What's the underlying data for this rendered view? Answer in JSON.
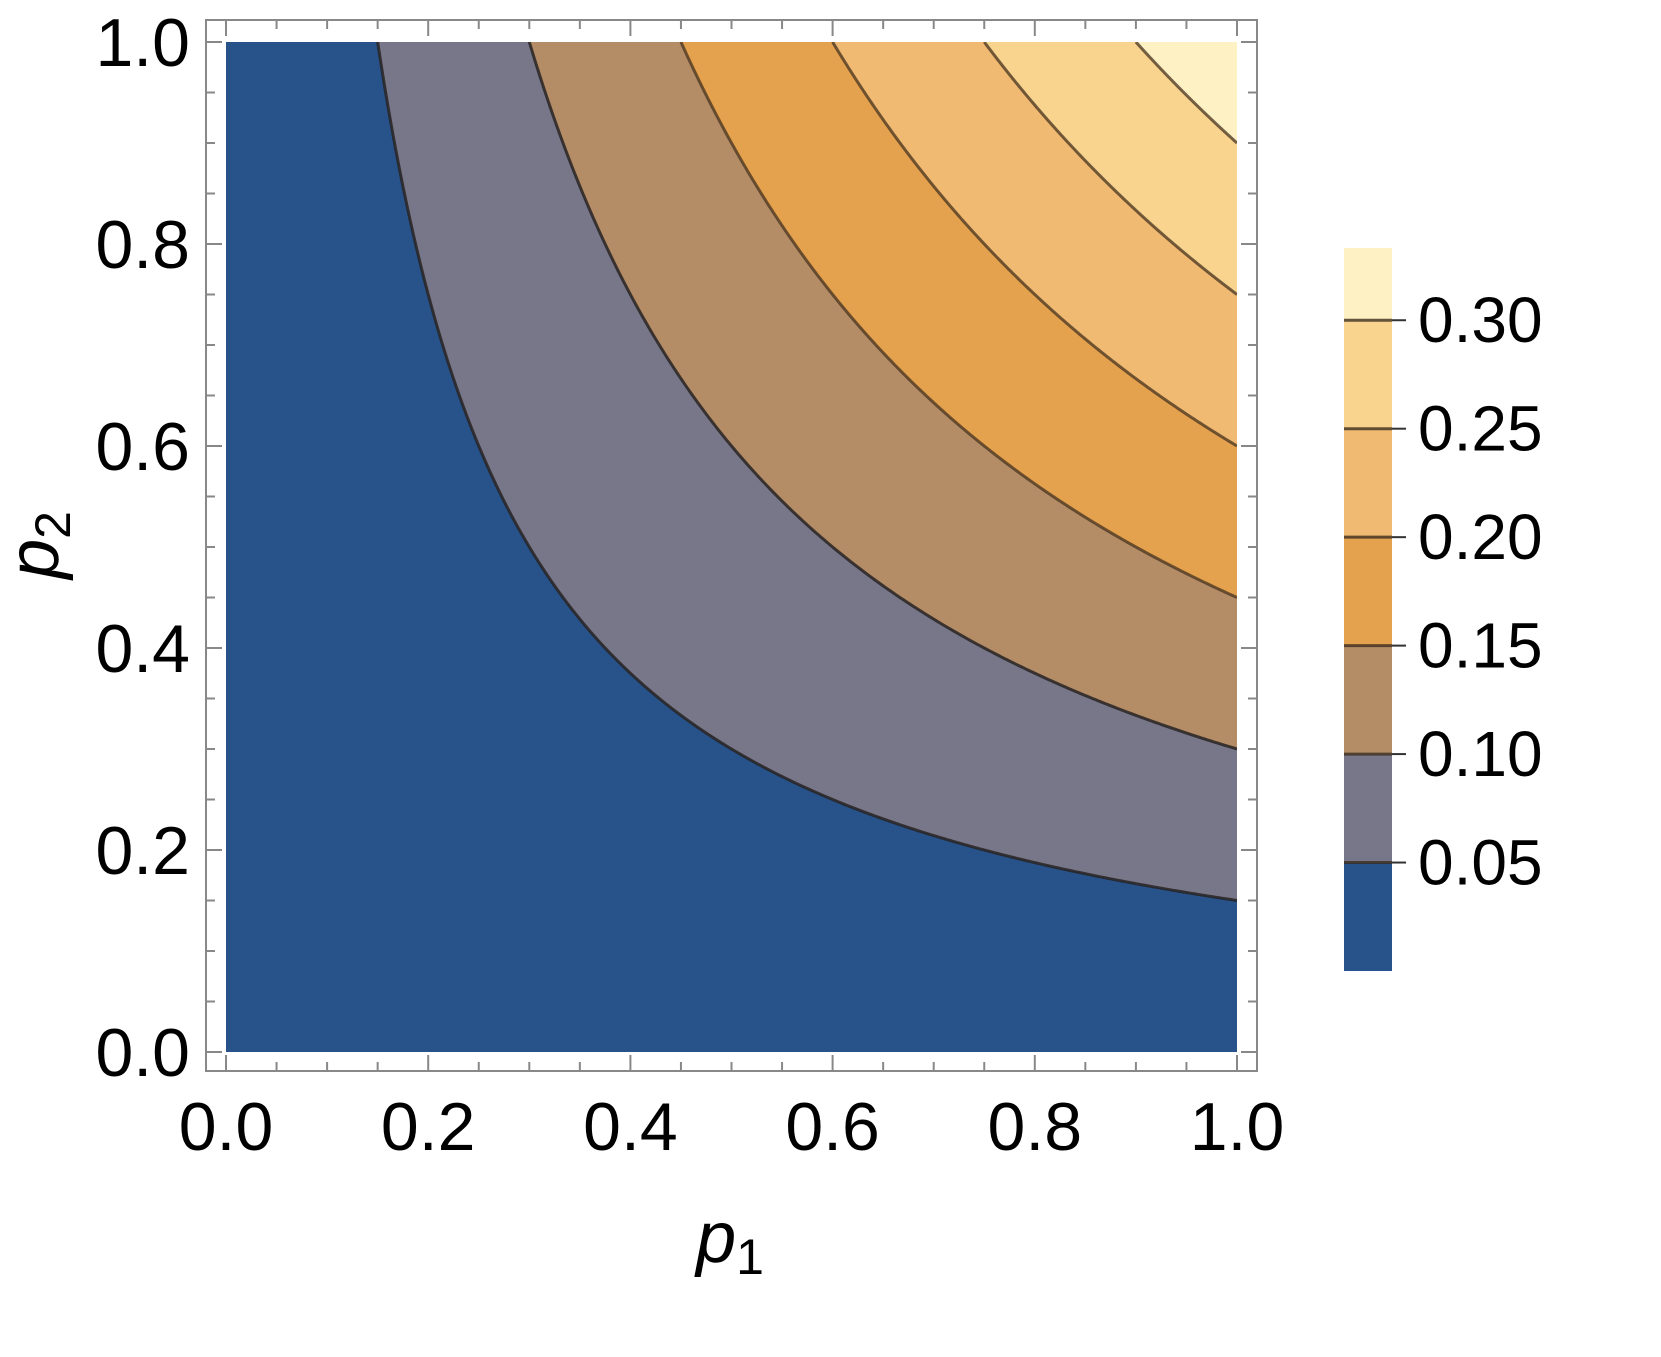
{
  "chart_data": {
    "type": "contour",
    "function": "z = p1 * p2 / 3",
    "xlabel": {
      "main": "p",
      "sub": "1"
    },
    "ylabel": {
      "main": "p",
      "sub": "2"
    },
    "xlim": [
      0,
      1
    ],
    "ylim": [
      0,
      1
    ],
    "x_ticks": [
      "0.0",
      "0.2",
      "0.4",
      "0.6",
      "0.8",
      "1.0"
    ],
    "y_ticks": [
      "0.0",
      "0.2",
      "0.4",
      "0.6",
      "0.8",
      "1.0"
    ],
    "contour_levels": [
      0.05,
      0.1,
      0.15,
      0.2,
      0.25,
      0.3
    ],
    "colorbar": {
      "min": 0,
      "max": 0.3333,
      "tick_labels": [
        "0.05",
        "0.10",
        "0.15",
        "0.20",
        "0.25",
        "0.30"
      ]
    },
    "band_colors": [
      "#27538A",
      "#787789",
      "#B48D67",
      "#E4A24F",
      "#F0BA72",
      "#F8D48F",
      "#FEF2C4"
    ],
    "grid": false,
    "legend": "colorbar-right"
  }
}
